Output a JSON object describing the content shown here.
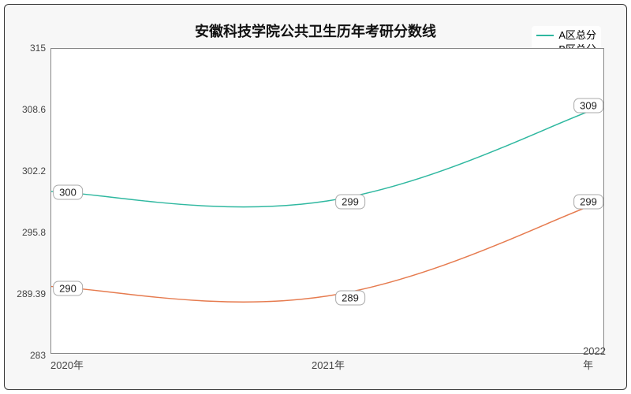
{
  "chart": {
    "type": "line",
    "title": "安徽科技学院公共卫生历年考研分数线",
    "title_fontsize": 18,
    "background_color": "#ffffff",
    "inner_background_color": "#f7f7f7",
    "plot_background_color": "#ffffff",
    "border_color": "#888888",
    "outer_border_color": "#333333",
    "grid_color": "#e0e0e0",
    "x_labels": [
      "2020年",
      "2021年",
      "2022年"
    ],
    "y_ticks": [
      283,
      289.39,
      295.8,
      302.2,
      308.6,
      315
    ],
    "ylim": [
      283,
      315
    ],
    "label_fontsize": 12,
    "series": [
      {
        "name": "A区总分",
        "color": "#2fb8a0",
        "values": [
          300,
          299,
          309
        ],
        "line_width": 1.5
      },
      {
        "name": "B区总分",
        "color": "#e67b4f",
        "values": [
          290,
          289,
          299
        ],
        "line_width": 1.5
      }
    ],
    "legend_position": "top-right",
    "x_positions": [
      0,
      0.5,
      1.0
    ]
  }
}
